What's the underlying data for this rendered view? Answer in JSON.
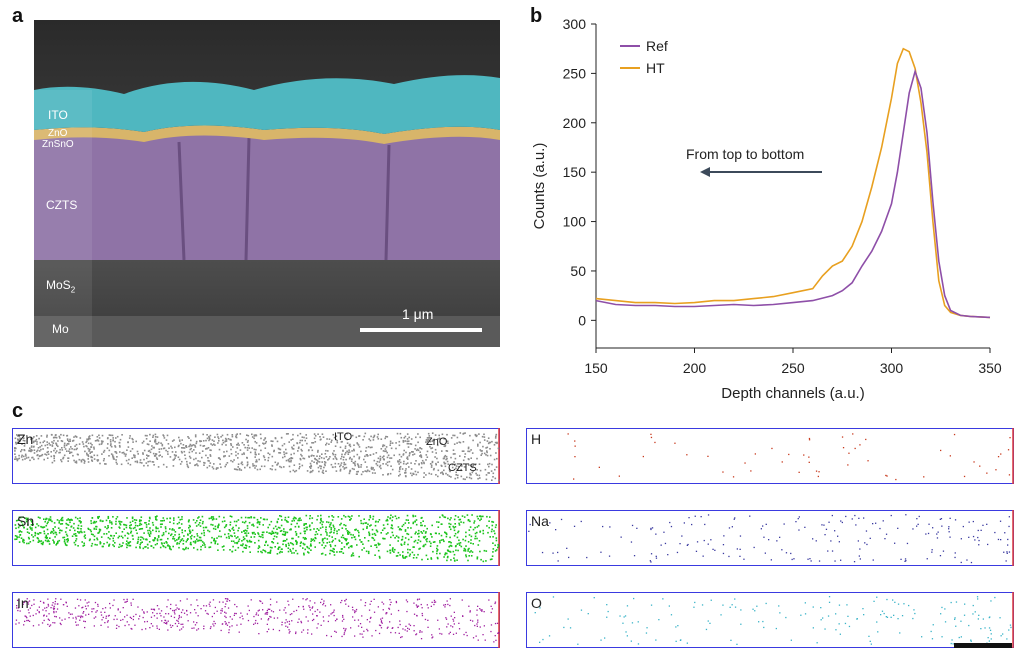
{
  "panel_labels": {
    "a": "a",
    "b": "b",
    "c": "c"
  },
  "panel_a": {
    "layers": [
      "ITO",
      "ZnO",
      "ZnSnO",
      "CZTS",
      "MoS",
      "Mo"
    ],
    "mos_sub": "2",
    "scale_bar_label": "1 μm",
    "colors": {
      "ITO": "#3fb8c4",
      "ZnO": "#d9a640",
      "CZTS": "#9b72b8"
    }
  },
  "panel_b": {
    "chart_data": {
      "type": "line",
      "xlabel": "Depth channels (a.u.)",
      "ylabel": "Counts (a.u.)",
      "xlim": [
        150,
        350
      ],
      "ylim": [
        -28,
        300
      ],
      "xticks": [
        150,
        200,
        250,
        300,
        350
      ],
      "yticks": [
        0,
        50,
        100,
        150,
        200,
        250,
        300
      ],
      "annotation": "From top to bottom",
      "legend_position": "top-left",
      "series": [
        {
          "name": "Ref",
          "color": "#8e4fa8",
          "x": [
            150,
            160,
            170,
            180,
            190,
            200,
            210,
            220,
            230,
            240,
            250,
            260,
            270,
            275,
            280,
            285,
            290,
            295,
            300,
            303,
            306,
            309,
            312,
            315,
            318,
            321,
            324,
            327,
            330,
            335,
            340,
            350
          ],
          "y": [
            20,
            16,
            15,
            15,
            14,
            14,
            15,
            16,
            15,
            16,
            18,
            20,
            25,
            30,
            38,
            55,
            70,
            90,
            118,
            150,
            190,
            230,
            252,
            235,
            190,
            120,
            60,
            25,
            10,
            5,
            4,
            3
          ]
        },
        {
          "name": "HT",
          "color": "#e8a020",
          "x": [
            150,
            160,
            170,
            180,
            190,
            200,
            210,
            220,
            230,
            240,
            250,
            260,
            265,
            270,
            275,
            280,
            285,
            290,
            295,
            300,
            303,
            306,
            309,
            312,
            315,
            318,
            321,
            324,
            327,
            330,
            335,
            340,
            350
          ],
          "y": [
            22,
            20,
            18,
            18,
            17,
            18,
            20,
            20,
            22,
            24,
            28,
            32,
            45,
            55,
            60,
            75,
            100,
            135,
            175,
            225,
            260,
            275,
            272,
            255,
            220,
            170,
            100,
            40,
            15,
            8,
            5,
            4,
            3
          ]
        }
      ]
    }
  },
  "panel_c": {
    "left": [
      {
        "label": "Zn",
        "color": "#8c8c8c",
        "annotations": [
          "ITO",
          "ZnO",
          "CZTS"
        ]
      },
      {
        "label": "Sn",
        "color": "#1dc41d"
      },
      {
        "label": "In",
        "color": "#a020a0"
      }
    ],
    "right": [
      {
        "label": "H",
        "color": "#c83a1e"
      },
      {
        "label": "Na",
        "color": "#3a3aa0"
      },
      {
        "label": "O",
        "color": "#3ab4c8"
      }
    ]
  }
}
